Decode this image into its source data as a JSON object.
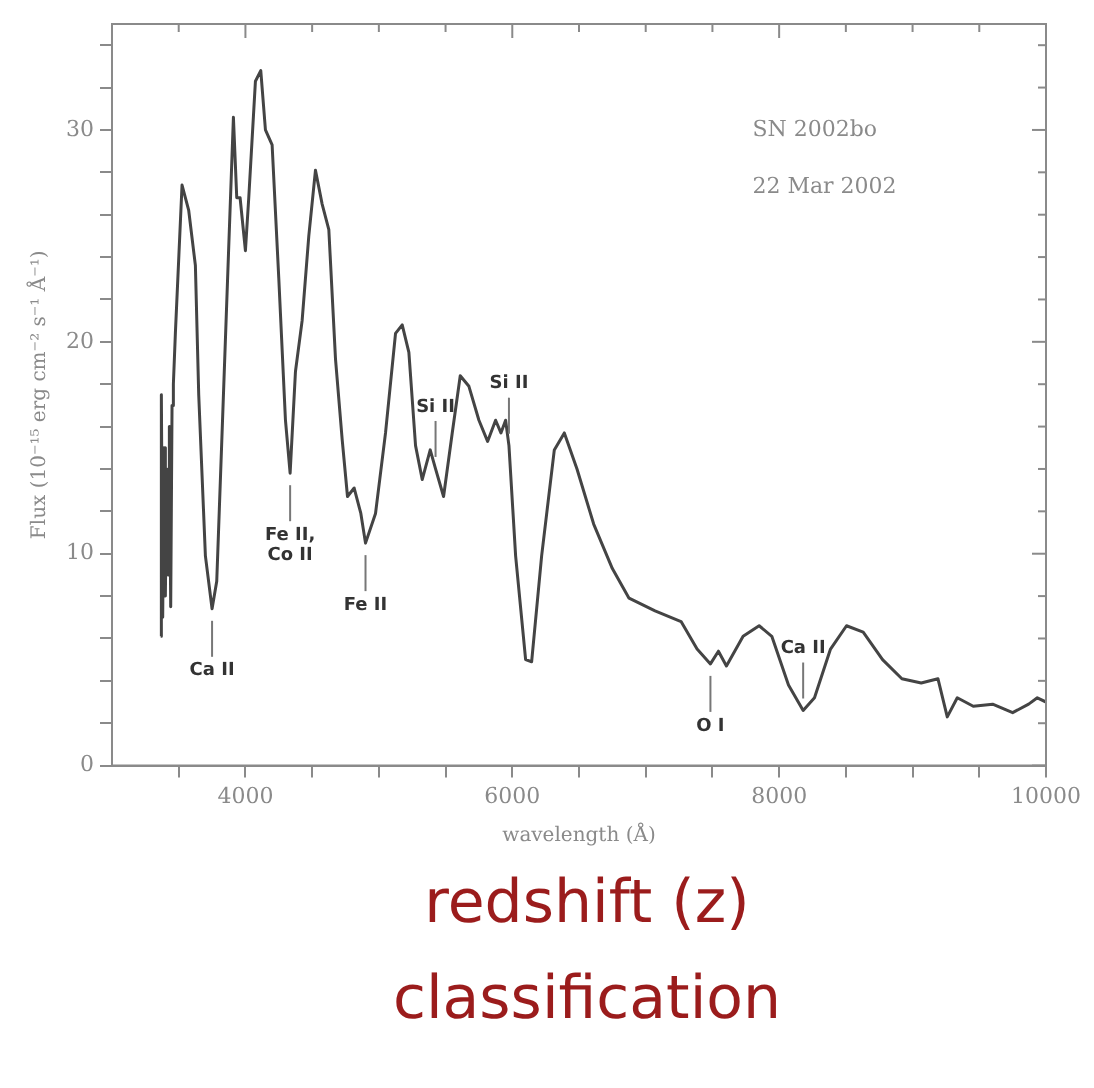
{
  "chart_data": {
    "type": "line",
    "title": "SN 2002bo",
    "subtitle": "22 Mar 2002",
    "xlabel": "wavelength (Å)",
    "ylabel": "Flux (10⁻¹⁵ erg cm⁻² s⁻¹ Å⁻¹)",
    "xlim": [
      3000,
      10000
    ],
    "ylim": [
      0,
      35
    ],
    "xticks": [
      {
        "value": 3500,
        "label": null
      },
      4000,
      {
        "value": 4500,
        "label": null
      },
      {
        "value": 5000,
        "label": null
      },
      {
        "value": 5500,
        "label": null
      },
      6000,
      {
        "value": 6500,
        "label": null
      },
      {
        "value": 7000,
        "label": null
      },
      {
        "value": 7500,
        "label": null
      },
      8000,
      {
        "value": 8500,
        "label": null
      },
      {
        "value": 9000,
        "label": null
      },
      {
        "value": 9500,
        "label": null
      },
      10000
    ],
    "yticks": [
      0,
      {
        "value": 2,
        "label": null
      },
      {
        "value": 4,
        "label": null
      },
      {
        "value": 6,
        "label": null
      },
      {
        "value": 8,
        "label": null
      },
      10,
      {
        "value": 12,
        "label": null
      },
      {
        "value": 14,
        "label": null
      },
      {
        "value": 16,
        "label": null
      },
      {
        "value": 18,
        "label": null
      },
      20,
      {
        "value": 22,
        "label": null
      },
      {
        "value": 24,
        "label": null
      },
      {
        "value": 26,
        "label": null
      },
      {
        "value": 28,
        "label": null
      },
      30,
      {
        "value": 32,
        "label": null
      },
      {
        "value": 34,
        "label": null
      }
    ],
    "grid": false,
    "legend": false,
    "marker": "none",
    "line_style": "solid",
    "series": [
      {
        "color": "#444444",
        "x": [
          3365,
          3370,
          3380,
          3390,
          3400,
          3410,
          3420,
          3430,
          3440,
          3450,
          3460,
          3475,
          3525,
          3575,
          3625,
          3650,
          3700,
          3750,
          3785,
          3825,
          3875,
          3910,
          3935,
          3960,
          4000,
          4025,
          4075,
          4115,
          4150,
          4200,
          4250,
          4300,
          4335,
          4375,
          4425,
          4475,
          4525,
          4575,
          4625,
          4675,
          4725,
          4765,
          4815,
          4865,
          4900,
          4975,
          5050,
          5125,
          5175,
          5225,
          5275,
          5325,
          5385,
          5425,
          5485,
          5550,
          5610,
          5675,
          5750,
          5815,
          5875,
          5915,
          5950,
          5975,
          6025,
          6100,
          6145,
          6220,
          6315,
          6390,
          6485,
          6610,
          6750,
          6875,
          7070,
          7265,
          7385,
          7485,
          7545,
          7605,
          7730,
          7850,
          7945,
          8070,
          8180,
          8265,
          8385,
          8505,
          8630,
          8775,
          8920,
          9065,
          9190,
          9260,
          9335,
          9455,
          9600,
          9750,
          9870,
          9935,
          10000
        ],
        "values": [
          6.1,
          17.5,
          7,
          15,
          8,
          14,
          9,
          16,
          7.5,
          17,
          18,
          20.4,
          27.4,
          26.2,
          23.6,
          17.5,
          9.9,
          7.4,
          8.7,
          15.7,
          24.5,
          30.6,
          26.8,
          26.8,
          24.3,
          26.8,
          32.3,
          32.8,
          30,
          29.3,
          23,
          16.3,
          13.8,
          18.6,
          21,
          25,
          28.1,
          26.5,
          25.3,
          19.2,
          15.4,
          12.7,
          13.1,
          11.9,
          10.5,
          11.9,
          15.7,
          20.4,
          20.8,
          19.5,
          15.1,
          13.5,
          14.9,
          14,
          12.7,
          15.7,
          18.4,
          17.9,
          16.3,
          15.3,
          16.3,
          15.7,
          16.3,
          15.1,
          9.9,
          5,
          4.9,
          9.9,
          14.9,
          15.7,
          14,
          11.4,
          9.3,
          7.9,
          7.3,
          6.8,
          5.5,
          4.8,
          5.4,
          4.7,
          6.1,
          6.6,
          6.1,
          3.8,
          2.6,
          3.2,
          5.5,
          6.6,
          6.3,
          5,
          4.1,
          3.9,
          4.1,
          2.3,
          3.2,
          2.8,
          2.9,
          2.5,
          2.9,
          3.2,
          3
        ]
      }
    ],
    "annotations": [
      {
        "text": "Ca II",
        "x": 3750,
        "y": 7.4
      },
      {
        "text": "Fe II,\nCo II",
        "x": 4335,
        "y": 13.8
      },
      {
        "text": "Fe II",
        "x": 4900,
        "y": 10.5
      },
      {
        "text": "Si II",
        "x": 5425,
        "y": 14
      },
      {
        "text": "Si II",
        "x": 5975,
        "y": 15.1
      },
      {
        "text": "O I",
        "x": 7485,
        "y": 4.8
      },
      {
        "text": "Ca II",
        "x": 8180,
        "y": 2.6
      },
      "redshift (z)",
      "classification"
    ]
  }
}
